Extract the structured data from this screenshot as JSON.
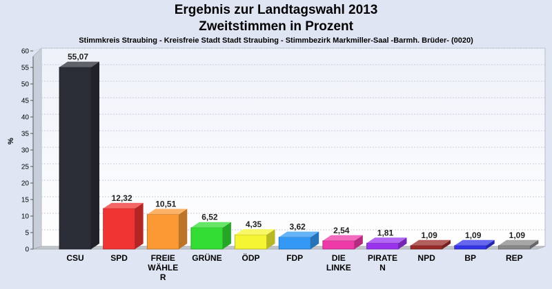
{
  "title": "Ergebnis zur Landtagswahl 2013",
  "subtitle": "Zweitstimmen in Prozent",
  "caption": "Stimmkreis Straubing - Kreisfreie Stadt Stadt Straubing - Stimmbezirk Markmiller-Saal -Barmh. Brüder- (0020)",
  "chart_data": {
    "type": "bar",
    "title": "Ergebnis zur Landtagswahl 2013",
    "subtitle": "Zweitstimmen in Prozent",
    "xlabel": "",
    "ylabel": "%",
    "ylim": [
      0,
      60
    ],
    "yticks": [
      0,
      5,
      10,
      15,
      20,
      25,
      30,
      35,
      40,
      45,
      50,
      55,
      60
    ],
    "grid": true,
    "categories": [
      "CSU",
      "SPD",
      "FREIE WÄHLER",
      "GRÜNE",
      "ÖDP",
      "FDP",
      "DIE LINKE",
      "PIRATEN",
      "NPD",
      "BP",
      "REP"
    ],
    "category_lines": [
      [
        "CSU"
      ],
      [
        "SPD"
      ],
      [
        "FREIE",
        "WÄHLE",
        "R"
      ],
      [
        "GRÜNE"
      ],
      [
        "ÖDP"
      ],
      [
        "FDP"
      ],
      [
        "DIE",
        "LINKE"
      ],
      [
        "PIRATE",
        "N"
      ],
      [
        "NPD"
      ],
      [
        "BP"
      ],
      [
        "REP"
      ]
    ],
    "values": [
      55.07,
      12.32,
      10.51,
      6.52,
      4.35,
      3.62,
      2.54,
      1.81,
      1.09,
      1.09,
      1.09
    ],
    "value_labels": [
      "55,07",
      "12,32",
      "10,51",
      "6,52",
      "4,35",
      "3,62",
      "2,54",
      "1,81",
      "1,09",
      "1,09",
      "1,09"
    ],
    "colors": [
      "#2a2d35",
      "#f03333",
      "#fb9a35",
      "#33dd33",
      "#f5f533",
      "#3399f5",
      "#ee3aa8",
      "#9a33ee",
      "#992a2a",
      "#3333e8",
      "#888888"
    ]
  }
}
